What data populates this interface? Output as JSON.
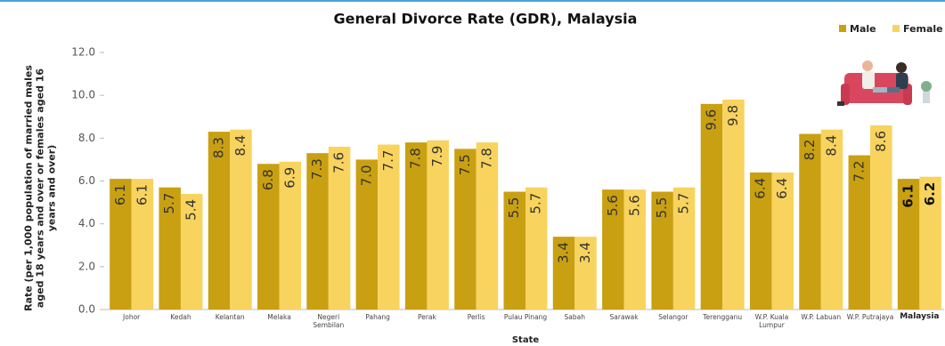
{
  "chart_data": {
    "type": "bar",
    "title": "General Divorce Rate (GDR), Malaysia",
    "x_label": "State",
    "y_label": "Rate (per 1,000 population of married males aged 18 years and over or females aged 16 years and over)",
    "categories": [
      "Johor",
      "Kedah",
      "Kelantan",
      "Melaka",
      "Negeri Sembilan",
      "Pahang",
      "Perak",
      "Perlis",
      "Pulau Pinang",
      "Sabah",
      "Sarawak",
      "Selangor",
      "Terengganu",
      "W.P. Kuala Lumpur",
      "W.P. Labuan",
      "W.P. Putrajaya",
      "Malaysia"
    ],
    "series": [
      {
        "name": "Male",
        "color": "#c9a012",
        "values": [
          6.1,
          5.7,
          8.3,
          6.8,
          7.3,
          7.0,
          7.8,
          7.5,
          5.5,
          3.4,
          5.6,
          5.5,
          9.6,
          6.4,
          8.2,
          7.2,
          6.1
        ],
        "value_labels": [
          "6.1",
          "5.7",
          "8.3",
          "6.8",
          "7.3",
          "7.0",
          "7.8",
          "7.5",
          "5.5",
          "3.4",
          "5.6",
          "5.5",
          "9.6",
          "6.4",
          "8.2",
          "7.2",
          "6.1"
        ]
      },
      {
        "name": "Female",
        "color": "#f8d35e",
        "values": [
          6.1,
          5.4,
          8.4,
          6.9,
          7.6,
          7.7,
          7.9,
          7.8,
          5.7,
          3.4,
          5.6,
          5.7,
          9.8,
          6.4,
          8.4,
          8.6,
          6.2
        ],
        "value_labels": [
          "6.1",
          "5.4",
          "8.4",
          "6.9",
          "7.6",
          "7.7",
          "7.9",
          "7.8",
          "5.7",
          "3.4",
          "5.6",
          "5.7",
          "9.8",
          "6.4",
          "8.4",
          "8.6",
          "6.2"
        ]
      }
    ],
    "ylim": [
      0,
      12
    ],
    "yticks": [
      {
        "value": 0,
        "label": "0.0"
      },
      {
        "value": 2,
        "label": "2.0"
      },
      {
        "value": 4,
        "label": "4.0"
      },
      {
        "value": 6,
        "label": "6.0"
      },
      {
        "value": 8,
        "label": "8.0"
      },
      {
        "value": 10,
        "label": "10.0"
      },
      {
        "value": 12,
        "label": "12.0"
      }
    ],
    "legend": "top-right",
    "grid": false
  }
}
